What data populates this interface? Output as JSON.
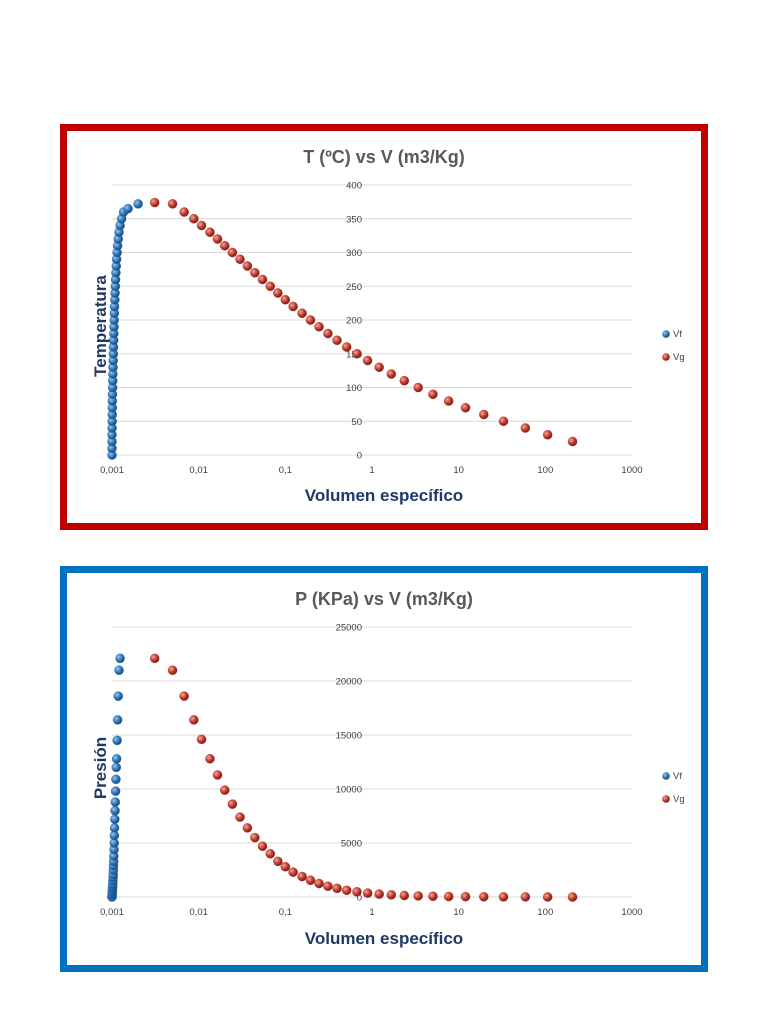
{
  "chart_data": [
    {
      "type": "scatter",
      "title": "T (ºC) vs V (m3/Kg)",
      "xlabel": "Volumen específico",
      "ylabel": "Temperatura",
      "x_scale": "log",
      "xlim": [
        0.001,
        1000
      ],
      "ylim": [
        0,
        400
      ],
      "x_tick_labels": [
        "0,001",
        "0,01",
        "0,1",
        "1",
        "10",
        "100",
        "1000"
      ],
      "y_ticks": [
        0,
        50,
        100,
        150,
        200,
        250,
        300,
        350,
        400
      ],
      "legend_position": "right",
      "series": [
        {
          "name": "Vf",
          "color": "#2e75b6",
          "points": [
            [
              0.001,
              0
            ],
            [
              0.001,
              10
            ],
            [
              0.001,
              20
            ],
            [
              0.001,
              30
            ],
            [
              0.001002,
              40
            ],
            [
              0.001004,
              50
            ],
            [
              0.001006,
              60
            ],
            [
              0.001008,
              70
            ],
            [
              0.00101,
              80
            ],
            [
              0.001013,
              90
            ],
            [
              0.001017,
              100
            ],
            [
              0.00102,
              110
            ],
            [
              0.001024,
              120
            ],
            [
              0.001028,
              130
            ],
            [
              0.001032,
              140
            ],
            [
              0.001036,
              150
            ],
            [
              0.00104,
              160
            ],
            [
              0.001045,
              170
            ],
            [
              0.00105,
              180
            ],
            [
              0.001055,
              190
            ],
            [
              0.00106,
              200
            ],
            [
              0.001065,
              210
            ],
            [
              0.00107,
              220
            ],
            [
              0.001078,
              230
            ],
            [
              0.001085,
              240
            ],
            [
              0.001092,
              250
            ],
            [
              0.0011,
              260
            ],
            [
              0.00111,
              270
            ],
            [
              0.00112,
              280
            ],
            [
              0.00113,
              290
            ],
            [
              0.001145,
              300
            ],
            [
              0.00116,
              310
            ],
            [
              0.00118,
              320
            ],
            [
              0.001205,
              330
            ],
            [
              0.00124,
              340
            ],
            [
              0.00129,
              350
            ],
            [
              0.00136,
              360
            ],
            [
              0.00153,
              365
            ],
            [
              0.002,
              372
            ]
          ]
        },
        {
          "name": "Vg",
          "color": "#c0392b",
          "points": [
            [
              0.00311,
              374
            ],
            [
              0.005,
              372
            ],
            [
              0.0068,
              360
            ],
            [
              0.0088,
              350
            ],
            [
              0.0108,
              340
            ],
            [
              0.0135,
              330
            ],
            [
              0.0165,
              320
            ],
            [
              0.02,
              310
            ],
            [
              0.0245,
              300
            ],
            [
              0.03,
              290
            ],
            [
              0.0365,
              280
            ],
            [
              0.0445,
              270
            ],
            [
              0.0545,
              260
            ],
            [
              0.067,
              250
            ],
            [
              0.082,
              240
            ],
            [
              0.1,
              230
            ],
            [
              0.123,
              220
            ],
            [
              0.156,
              210
            ],
            [
              0.195,
              200
            ],
            [
              0.245,
              190
            ],
            [
              0.31,
              180
            ],
            [
              0.395,
              170
            ],
            [
              0.51,
              160
            ],
            [
              0.67,
              150
            ],
            [
              0.89,
              140
            ],
            [
              1.21,
              130
            ],
            [
              1.67,
              120
            ],
            [
              2.36,
              110
            ],
            [
              3.41,
              100
            ],
            [
              5.05,
              90
            ],
            [
              7.67,
              80
            ],
            [
              12.0,
              70
            ],
            [
              19.5,
              60
            ],
            [
              32.9,
              50
            ],
            [
              58.8,
              40
            ],
            [
              106.4,
              30
            ],
            [
              206.1,
              20
            ]
          ]
        }
      ]
    },
    {
      "type": "scatter",
      "title": "P (KPa) vs V (m3/Kg)",
      "xlabel": "Volumen específico",
      "ylabel": "Presión",
      "x_scale": "log",
      "xlim": [
        0.001,
        1000
      ],
      "ylim": [
        0,
        25000
      ],
      "x_tick_labels": [
        "0,001",
        "0,01",
        "0,1",
        "1",
        "10",
        "100",
        "1000"
      ],
      "y_ticks": [
        0,
        5000,
        10000,
        15000,
        20000,
        25000
      ],
      "legend_position": "right",
      "series": [
        {
          "name": "Vf",
          "color": "#2e75b6",
          "points": [
            [
              0.001,
              0
            ],
            [
              0.001,
              10
            ],
            [
              0.001,
              30
            ],
            [
              0.001,
              70
            ],
            [
              0.001002,
              120
            ],
            [
              0.001004,
              200
            ],
            [
              0.001006,
              300
            ],
            [
              0.001008,
              450
            ],
            [
              0.00101,
              600
            ],
            [
              0.001013,
              800
            ],
            [
              0.001017,
              1000
            ],
            [
              0.00102,
              1200
            ],
            [
              0.001024,
              1500
            ],
            [
              0.001028,
              1800
            ],
            [
              0.001032,
              2100
            ],
            [
              0.001036,
              2500
            ],
            [
              0.00104,
              2900
            ],
            [
              0.001045,
              3300
            ],
            [
              0.00105,
              3800
            ],
            [
              0.001055,
              4400
            ],
            [
              0.00106,
              5000
            ],
            [
              0.001065,
              5700
            ],
            [
              0.00107,
              6400
            ],
            [
              0.001078,
              7200
            ],
            [
              0.001085,
              8000
            ],
            [
              0.001092,
              8800
            ],
            [
              0.0011,
              9800
            ],
            [
              0.00111,
              10900
            ],
            [
              0.00112,
              12000
            ],
            [
              0.00113,
              12800
            ],
            [
              0.001145,
              14500
            ],
            [
              0.00116,
              16400
            ],
            [
              0.00118,
              18600
            ],
            [
              0.001205,
              21000
            ],
            [
              0.00124,
              22100
            ]
          ]
        },
        {
          "name": "Vg",
          "color": "#c0392b",
          "points": [
            [
              0.00311,
              22100
            ],
            [
              0.005,
              21000
            ],
            [
              0.0068,
              18600
            ],
            [
              0.0088,
              16400
            ],
            [
              0.0108,
              14600
            ],
            [
              0.0135,
              12800
            ],
            [
              0.0165,
              11300
            ],
            [
              0.02,
              9900
            ],
            [
              0.0245,
              8600
            ],
            [
              0.03,
              7400
            ],
            [
              0.0365,
              6400
            ],
            [
              0.0445,
              5500
            ],
            [
              0.0545,
              4700
            ],
            [
              0.067,
              4000
            ],
            [
              0.082,
              3300
            ],
            [
              0.1,
              2800
            ],
            [
              0.123,
              2300
            ],
            [
              0.156,
              1900
            ],
            [
              0.195,
              1550
            ],
            [
              0.245,
              1250
            ],
            [
              0.31,
              1000
            ],
            [
              0.395,
              800
            ],
            [
              0.51,
              620
            ],
            [
              0.67,
              480
            ],
            [
              0.89,
              360
            ],
            [
              1.21,
              270
            ],
            [
              1.67,
              200
            ],
            [
              2.36,
              140
            ],
            [
              3.41,
              100
            ],
            [
              5.05,
              70
            ],
            [
              7.67,
              47
            ],
            [
              12.0,
              31
            ],
            [
              19.5,
              20
            ],
            [
              32.9,
              12
            ],
            [
              58.8,
              7
            ],
            [
              106.4,
              4
            ],
            [
              206.1,
              2
            ]
          ]
        }
      ]
    }
  ]
}
